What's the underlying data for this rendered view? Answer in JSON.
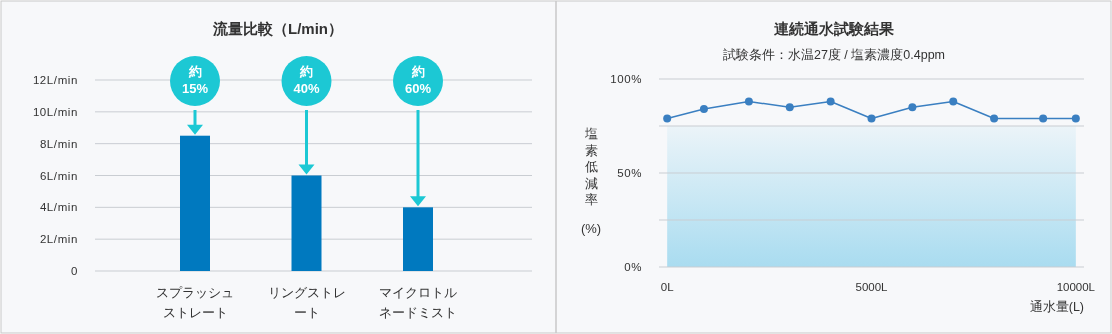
{
  "chart_data": [
    {
      "type": "bar",
      "title": "流量比較（L/min）",
      "categories": [
        "スプラッシュストレート",
        "リングストレート",
        "マイクロトルネードミスト"
      ],
      "values": [
        8.5,
        6,
        4
      ],
      "color": "#0079bf",
      "ylim": [
        0,
        12
      ],
      "yticks": [
        {
          "value": 0,
          "label": "0"
        },
        {
          "value": 2,
          "label": "2L/min"
        },
        {
          "value": 4,
          "label": "4L/min"
        },
        {
          "value": 6,
          "label": "6L/min"
        },
        {
          "value": 8,
          "label": "8L/min"
        },
        {
          "value": 10,
          "label": "10L/min"
        },
        {
          "value": 12,
          "label": "12L/min"
        }
      ],
      "grid": "y",
      "annotations": [
        "約15%",
        "約40%",
        "約60%"
      ]
    },
    {
      "type": "line",
      "title": "連続通水試験結果",
      "subtitle": "試験条件：水温27度 / 塩素濃度0.4ppm",
      "xlabel": "通水量(L)",
      "ylabel": "塩素低減率 (%)",
      "x": [
        0,
        900,
        2000,
        3000,
        4000,
        5000,
        6000,
        7000,
        8000,
        9200,
        10000
      ],
      "values": [
        79,
        84,
        88,
        85,
        88,
        79,
        85,
        88,
        79,
        79,
        79
      ],
      "color": "#3a7fc1",
      "marker": "circle",
      "line_style": "solid",
      "xlim": [
        -200,
        10200
      ],
      "ylim": [
        0,
        100
      ],
      "xticks": [
        {
          "value": 0,
          "label": "0L"
        },
        {
          "value": 5000,
          "label": "5000L"
        },
        {
          "value": 10000,
          "label": "10000L"
        }
      ],
      "yticks": [
        {
          "value": 0,
          "label": "0%"
        },
        {
          "value": 25,
          "label": null
        },
        {
          "value": 50,
          "label": "50%"
        },
        {
          "value": 75,
          "label": null
        },
        {
          "value": 100,
          "label": "100%"
        }
      ],
      "grid": "y",
      "bands": [
        {
          "axis": "y",
          "from": 0,
          "to": 75,
          "color": "#a9dcf0"
        }
      ]
    }
  ]
}
